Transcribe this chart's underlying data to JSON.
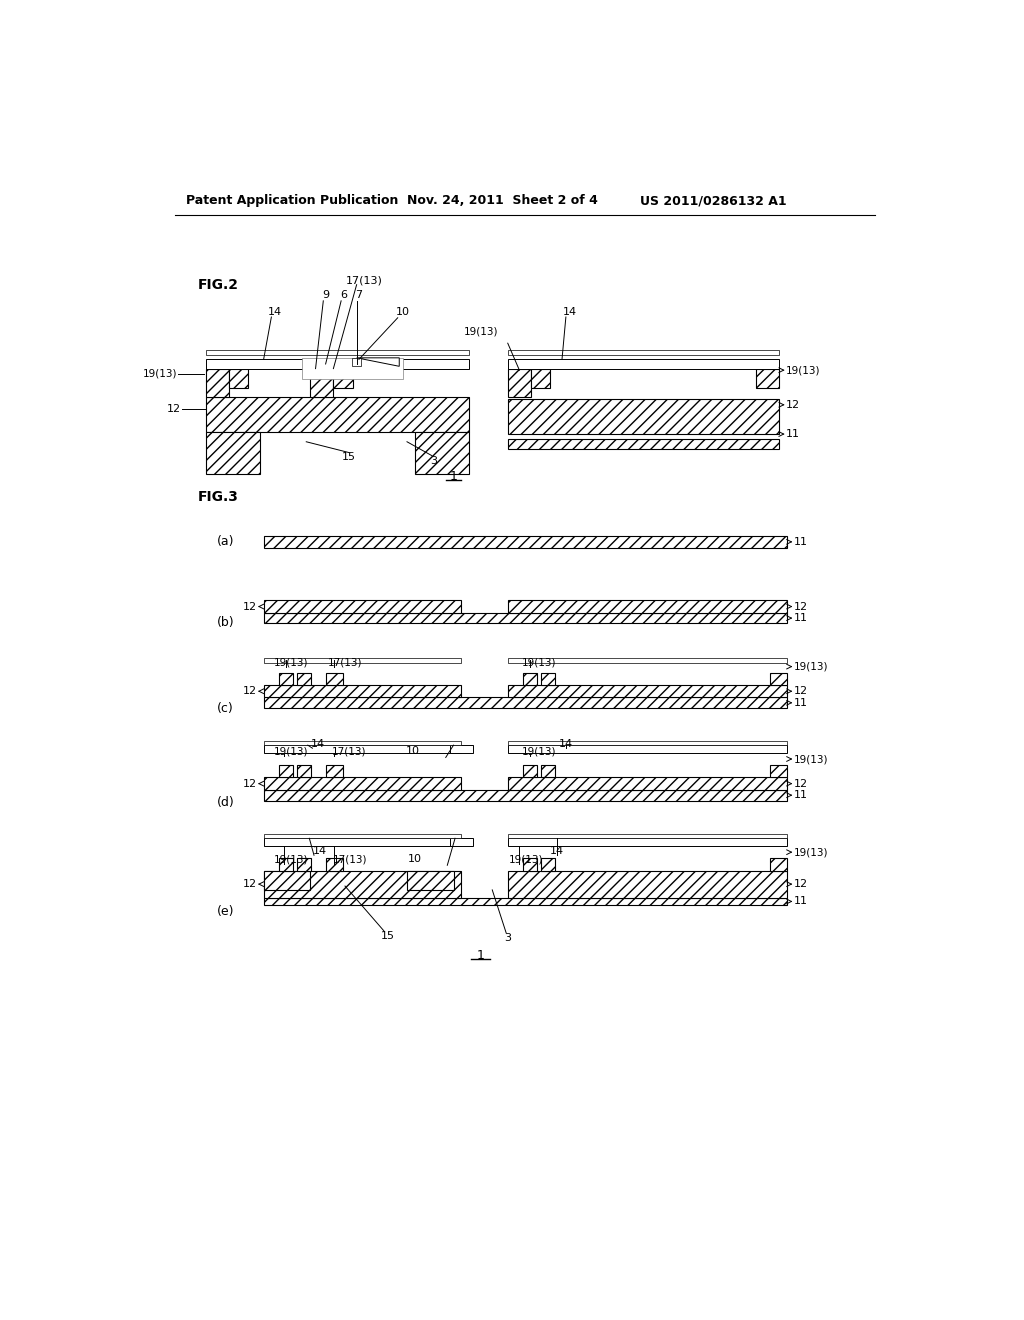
{
  "bg_color": "#ffffff",
  "header_left": "Patent Application Publication",
  "header_mid": "Nov. 24, 2011  Sheet 2 of 4",
  "header_right": "US 2011/0286132 A1"
}
